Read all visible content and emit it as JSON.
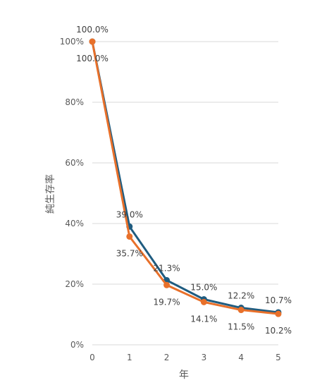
{
  "chart_data": {
    "type": "line",
    "title": "",
    "xlabel": "年",
    "ylabel": "純生存率",
    "x": [
      0,
      1,
      2,
      3,
      4,
      5
    ],
    "xlim": [
      0,
      5
    ],
    "ylim": [
      0,
      100
    ],
    "yticks": [
      0,
      20,
      40,
      60,
      80,
      100
    ],
    "ytick_labels": [
      "0%",
      "20%",
      "40%",
      "60%",
      "80%",
      "100%"
    ],
    "xtick_labels": [
      "0",
      "1",
      "2",
      "3",
      "4",
      "5"
    ],
    "grid": true,
    "legend": "none",
    "series": [
      {
        "color": "#1f5c80",
        "values": [
          100.0,
          39.0,
          21.3,
          15.0,
          12.2,
          10.7
        ],
        "labels": [
          "100.0%",
          "39.0%",
          "21.3%",
          "15.0%",
          "12.2%",
          "10.7%"
        ]
      },
      {
        "color": "#e8702a",
        "values": [
          100.0,
          35.7,
          19.7,
          14.1,
          11.5,
          10.2
        ],
        "labels": [
          "100.0%",
          "35.7%",
          "19.7%",
          "14.1%",
          "11.5%",
          "10.2%"
        ]
      }
    ]
  }
}
